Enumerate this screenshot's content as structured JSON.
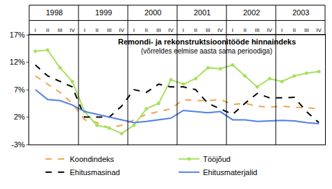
{
  "chart_data": {
    "type": "line",
    "title": "Remondi- ja rekonstruktsioonitööde hinnaindeks",
    "subtitle": "(võrreldes eelmise aasta sama perioodiga)",
    "years": [
      "1998",
      "1999",
      "2000",
      "2001",
      "2002",
      "2003"
    ],
    "categories": [
      "I",
      "II",
      "III",
      "IV",
      "I",
      "II",
      "III",
      "IV",
      "I",
      "II",
      "III",
      "IV",
      "I",
      "II",
      "III",
      "IV",
      "I",
      "II",
      "III",
      "IV",
      "I",
      "II",
      "III",
      "IV"
    ],
    "ylim": [
      -3,
      17
    ],
    "yticks": [
      {
        "value": -3,
        "label": "-3%"
      },
      {
        "value": 2,
        "label": "2%"
      },
      {
        "value": 7,
        "label": "7%"
      },
      {
        "value": 12,
        "label": "12%"
      },
      {
        "value": 17,
        "label": "17%"
      }
    ],
    "grid": false,
    "legend": "bottom",
    "series": [
      {
        "name": "Koondindeks",
        "color": "#f4a14a",
        "line_style": "dashed",
        "values": [
          9.5,
          8,
          6.5,
          4.5,
          1.5,
          1,
          0,
          0.5,
          1.5,
          2.5,
          3,
          3.5,
          5.2,
          5,
          5,
          5.2,
          4.3,
          4.5,
          4,
          3.8,
          4,
          3.8,
          3.7,
          3.5
        ]
      },
      {
        "name": "Tööjõud",
        "color": "#a8e060",
        "line_style": "solid",
        "marker": "circle",
        "values": [
          14,
          14.2,
          11,
          8.5,
          3,
          0.5,
          0,
          -1,
          0.5,
          3.5,
          4.5,
          8.8,
          8,
          9,
          11,
          10.8,
          11.5,
          9.5,
          7.5,
          9,
          8.5,
          9.5,
          10,
          10.3
        ]
      },
      {
        "name": "Ehitusmasinad",
        "color": "#000000",
        "line_style": "dashed",
        "values": [
          11.5,
          9.5,
          8.5,
          7.5,
          2,
          2,
          2,
          4,
          7,
          6.5,
          8,
          7.5,
          7.5,
          7,
          4.5,
          3.5,
          2.5,
          4.5,
          6.3,
          5.5,
          5.5,
          5.6,
          3,
          1
        ]
      },
      {
        "name": "Ehitusmaterjalid",
        "color": "#4f7fe8",
        "line_style": "solid",
        "values": [
          7,
          5.2,
          5,
          4.2,
          3,
          2.5,
          2,
          1.5,
          1,
          1.2,
          1.5,
          1.8,
          3.2,
          3,
          2.8,
          3,
          1.5,
          1.5,
          1.2,
          1.3,
          1.4,
          1.3,
          1,
          0.8
        ]
      }
    ]
  }
}
